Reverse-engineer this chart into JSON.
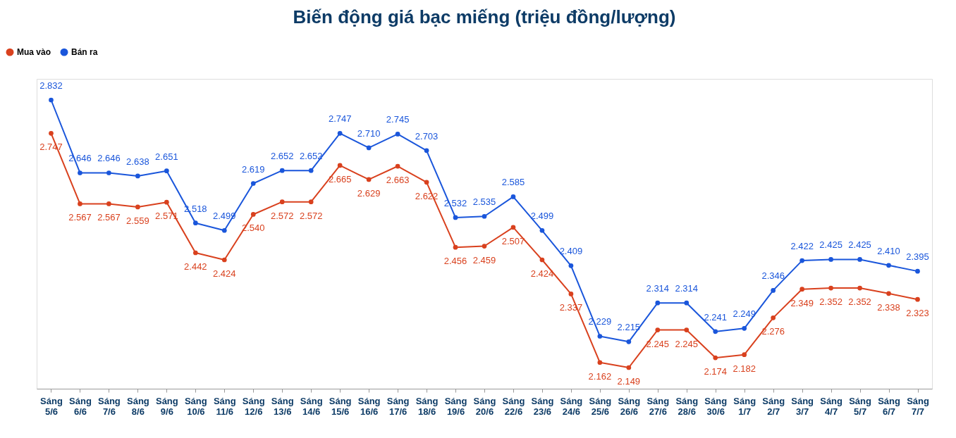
{
  "chart_data": {
    "type": "line",
    "title": "Biến động giá bạc miếng (triệu đồng/lượng)",
    "categories": [
      "Sáng 5/6",
      "Sáng 6/6",
      "Sáng 7/6",
      "Sáng 8/6",
      "Sáng 9/6",
      "Sáng 10/6",
      "Sáng 11/6",
      "Sáng 12/6",
      "Sáng 13/6",
      "Sáng 14/6",
      "Sáng 15/6",
      "Sáng 16/6",
      "Sáng 17/6",
      "Sáng 18/6",
      "Sáng 19/6",
      "Sáng 20/6",
      "Sáng 22/6",
      "Sáng 23/6",
      "Sáng 24/6",
      "Sáng 25/6",
      "Sáng 26/6",
      "Sáng 27/6",
      "Sáng 28/6",
      "Sáng 30/6",
      "Sáng 1/7",
      "Sáng 2/7",
      "Sáng 3/7",
      "Sáng 4/7",
      "Sáng 5/7",
      "Sáng 6/7",
      "Sáng 7/7"
    ],
    "series": [
      {
        "name": "Mua vào",
        "color": "#d9411e",
        "values": [
          2.747,
          2.567,
          2.567,
          2.559,
          2.571,
          2.442,
          2.424,
          2.54,
          2.572,
          2.572,
          2.665,
          2.629,
          2.663,
          2.622,
          2.456,
          2.459,
          2.507,
          2.424,
          2.337,
          2.162,
          2.149,
          2.245,
          2.245,
          2.174,
          2.182,
          2.276,
          2.349,
          2.352,
          2.352,
          2.338,
          2.323
        ],
        "value_labels": [
          "2.747",
          "2.567",
          "2.567",
          "2.559",
          "2.571",
          "2.442",
          "2.424",
          "2.540",
          "2.572",
          "2.572",
          "2.665",
          "2.629",
          "2.663",
          "2.622",
          "2.456",
          "2.459",
          "2.507",
          "2.424",
          "2.337",
          "2.162",
          "2.149",
          "2.245",
          "2.245",
          "2.174",
          "2.182",
          "2.276",
          "2.349",
          "2.352",
          "2.352",
          "2.338",
          "2.323"
        ]
      },
      {
        "name": "Bán ra",
        "color": "#1a56db",
        "values": [
          2.832,
          2.646,
          2.646,
          2.638,
          2.651,
          2.518,
          2.499,
          2.619,
          2.652,
          2.652,
          2.747,
          2.71,
          2.745,
          2.703,
          2.532,
          2.535,
          2.585,
          2.499,
          2.409,
          2.229,
          2.215,
          2.314,
          2.314,
          2.241,
          2.249,
          2.346,
          2.422,
          2.425,
          2.425,
          2.41,
          2.395
        ],
        "value_labels": [
          "2.832",
          "2.646",
          "2.646",
          "2.638",
          "2.651",
          "2.518",
          "2.499",
          "2.619",
          "2.652",
          "2.652",
          "2.747",
          "2.710",
          "2.745",
          "2.703",
          "2.532",
          "2.535",
          "2.585",
          "2.499",
          "2.409",
          "2.229",
          "2.215",
          "2.314",
          "2.314",
          "2.241",
          "2.249",
          "2.346",
          "2.422",
          "2.425",
          "2.425",
          "2.410",
          "2.395"
        ]
      }
    ],
    "legend": "top left",
    "marker": "circle",
    "line_style": "solid",
    "grid": false
  }
}
